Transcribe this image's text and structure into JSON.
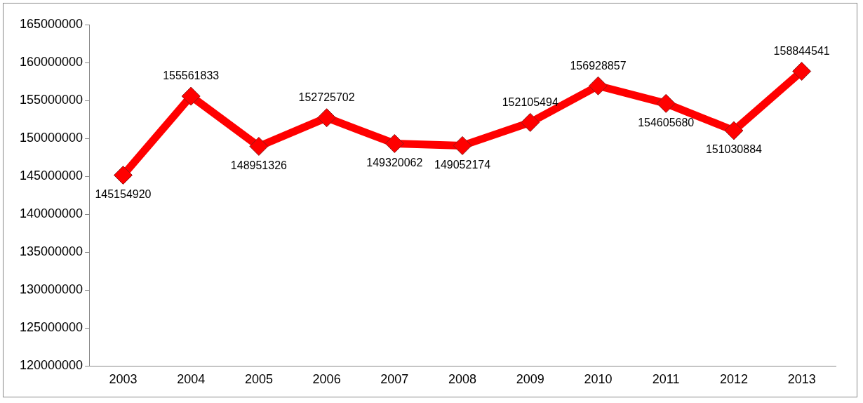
{
  "chart_data": {
    "type": "line",
    "categories": [
      "2003",
      "2004",
      "2005",
      "2006",
      "2007",
      "2008",
      "2009",
      "2010",
      "2011",
      "2012",
      "2013"
    ],
    "series": [
      {
        "color": "#ff0000",
        "values": [
          145154920,
          155561833,
          148951326,
          152725702,
          149320062,
          149052174,
          152105494,
          156928857,
          154605680,
          151030884,
          158844541
        ]
      }
    ],
    "ylim": [
      120000000,
      165000000
    ],
    "yticks": [
      120000000,
      125000000,
      130000000,
      135000000,
      140000000,
      145000000,
      150000000,
      155000000,
      160000000,
      165000000
    ],
    "grid": false,
    "legend": false,
    "marker": "diamond",
    "line_style": "solid",
    "data_labels": true
  }
}
